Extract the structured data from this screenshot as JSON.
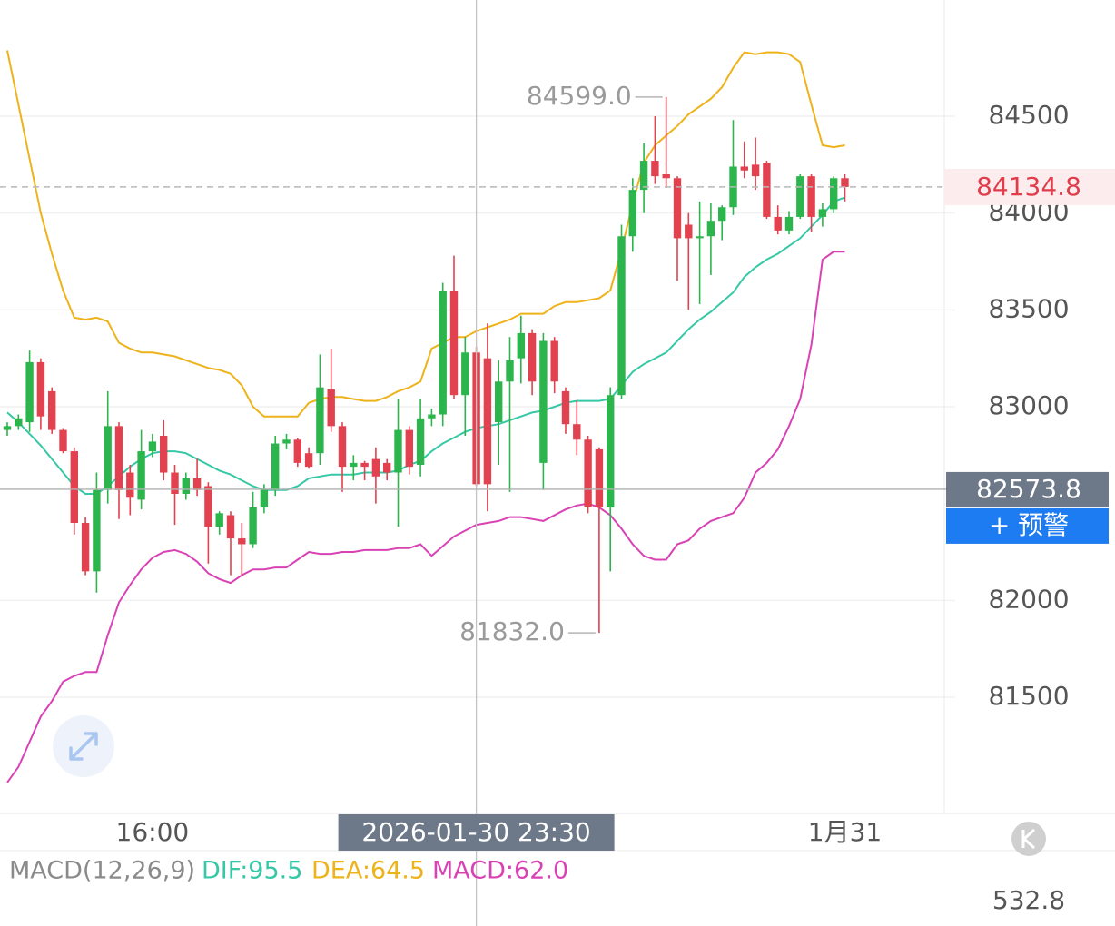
{
  "chart_data": {
    "type": "candlestick",
    "categories": [
      null,
      null,
      null,
      null,
      null,
      null,
      null,
      null,
      null,
      null,
      null,
      null,
      null,
      "16:00",
      null,
      null,
      null,
      null,
      null,
      null,
      null,
      null,
      null,
      null,
      null,
      null,
      null,
      null,
      null,
      null,
      null,
      null,
      null,
      null,
      null,
      null,
      null,
      null,
      null,
      null,
      null,
      null,
      "2026-01-30 23:30",
      null,
      null,
      null,
      null,
      null,
      null,
      null,
      null,
      null,
      null,
      null,
      null,
      null,
      null,
      null,
      null,
      null,
      null,
      null,
      null,
      null,
      null,
      null,
      null,
      null,
      null,
      null,
      null,
      null,
      null,
      null,
      null,
      "1月31"
    ],
    "open": [
      82880,
      82900,
      82920,
      83230,
      83080,
      82880,
      82770,
      82400,
      82150,
      82570,
      82900,
      82660,
      82520,
      82770,
      82850,
      82660,
      82550,
      82630,
      82590,
      82380,
      82440,
      82320,
      82290,
      82480,
      82570,
      82810,
      82830,
      82760,
      82760,
      83090,
      82900,
      82690,
      82710,
      82730,
      82710,
      82660,
      82880,
      82700,
      82940,
      82960,
      83600,
      83060,
      83280,
      83250,
      82920,
      83130,
      83250,
      83380,
      82710,
      83340,
      83080,
      82910,
      82830,
      82780,
      82480,
      83060,
      83880,
      84120,
      84270,
      84200,
      84180,
      83940,
      83870,
      83880,
      83960,
      84030,
      84240,
      84250,
      84260,
      83980,
      83910,
      83980,
      84190,
      83980,
      84020,
      84180
    ],
    "high": [
      82920,
      82960,
      83290,
      83250,
      83100,
      82890,
      82790,
      82430,
      82660,
      83080,
      82920,
      82700,
      82880,
      82860,
      82930,
      82700,
      82660,
      82730,
      82610,
      82460,
      82460,
      82400,
      82560,
      82600,
      82850,
      82860,
      82840,
      82790,
      83270,
      83300,
      82920,
      82750,
      82720,
      82790,
      82730,
      83040,
      82900,
      83040,
      82990,
      83640,
      83780,
      83360,
      83310,
      83430,
      83240,
      83360,
      83470,
      83400,
      83380,
      83360,
      83100,
      83030,
      82850,
      82790,
      83100,
      83940,
      84180,
      84360,
      84500,
      84599,
      84190,
      84000,
      84060,
      84050,
      84040,
      84480,
      84370,
      84390,
      84270,
      84040,
      84010,
      84200,
      84200,
      84050,
      84190,
      84200
    ],
    "low": [
      82850,
      82880,
      82870,
      82880,
      82860,
      82760,
      82340,
      82130,
      82040,
      82500,
      82420,
      82440,
      82470,
      82740,
      82620,
      82390,
      82520,
      82540,
      82190,
      82340,
      82130,
      82130,
      82270,
      82450,
      82540,
      82780,
      82690,
      82680,
      82700,
      82870,
      82560,
      82620,
      82620,
      82500,
      82620,
      82380,
      82650,
      82640,
      82900,
      82900,
      83040,
      82850,
      82590,
      82460,
      82700,
      82560,
      83120,
      83060,
      82570,
      83070,
      82860,
      82750,
      82450,
      81832,
      82150,
      83040,
      83800,
      84000,
      84150,
      84130,
      83650,
      83500,
      83530,
      83680,
      83860,
      83990,
      84180,
      84120,
      83970,
      83890,
      83890,
      83970,
      83900,
      83930,
      84000,
      84060
    ],
    "close": [
      82900,
      82940,
      83230,
      82950,
      82880,
      82770,
      82400,
      82150,
      82570,
      82900,
      82570,
      82530,
      82770,
      82820,
      82660,
      82550,
      82630,
      82570,
      82380,
      82450,
      82320,
      82290,
      82480,
      82570,
      82810,
      82830,
      82710,
      82690,
      83100,
      82900,
      82690,
      82710,
      82690,
      82640,
      82660,
      82880,
      82690,
      82940,
      82960,
      83600,
      83060,
      83280,
      82600,
      82600,
      83130,
      83240,
      83380,
      83130,
      83340,
      83130,
      82910,
      82830,
      82480,
      82480,
      83060,
      83880,
      84120,
      84270,
      84190,
      84180,
      83870,
      83870,
      83880,
      83960,
      84030,
      84240,
      84220,
      84190,
      83980,
      83910,
      83980,
      84190,
      83980,
      84020,
      84180,
      84134.8
    ],
    "up_color": "#2db54d",
    "down_color": "#e2424f",
    "bands": [
      {
        "color": "#eeb21a",
        "values": [
          84840,
          84560,
          84280,
          84000,
          83790,
          83600,
          83460,
          83450,
          83460,
          83440,
          83330,
          83300,
          83280,
          83280,
          83270,
          83260,
          83240,
          83220,
          83200,
          83190,
          83170,
          83110,
          83000,
          82950,
          82950,
          82950,
          82950,
          83020,
          83040,
          83050,
          83050,
          83040,
          83030,
          83030,
          83050,
          83080,
          83100,
          83130,
          83300,
          83330,
          83360,
          83360,
          83390,
          83410,
          83430,
          83450,
          83480,
          83480,
          83480,
          83520,
          83540,
          83540,
          83550,
          83560,
          83600,
          83810,
          84050,
          84260,
          84350,
          84400,
          84450,
          84510,
          84550,
          84590,
          84650,
          84750,
          84830,
          84820,
          84830,
          84830,
          84820,
          84780,
          84560,
          84350,
          84340,
          84350
        ]
      },
      {
        "color": "#36c8a6",
        "values": [
          82970,
          82920,
          82860,
          82800,
          82730,
          82660,
          82590,
          82550,
          82550,
          82590,
          82640,
          82690,
          82730,
          82760,
          82770,
          82770,
          82760,
          82730,
          82700,
          82670,
          82650,
          82620,
          82590,
          82570,
          82570,
          82570,
          82590,
          82630,
          82640,
          82650,
          82650,
          82650,
          82660,
          82660,
          82660,
          82670,
          82700,
          82720,
          82770,
          82810,
          82840,
          82870,
          82890,
          82900,
          82910,
          82930,
          82950,
          82970,
          82980,
          83000,
          83020,
          83030,
          83030,
          83030,
          83040,
          83110,
          83180,
          83220,
          83250,
          83280,
          83340,
          83400,
          83450,
          83490,
          83540,
          83590,
          83670,
          83720,
          83760,
          83790,
          83830,
          83870,
          83930,
          83990,
          84060,
          84080
        ]
      },
      {
        "color": "#d842b4",
        "values": [
          81060,
          81140,
          81270,
          81400,
          81480,
          81580,
          81610,
          81630,
          81630,
          81820,
          81990,
          82080,
          82160,
          82220,
          82250,
          82260,
          82240,
          82200,
          82140,
          82110,
          82090,
          82130,
          82160,
          82160,
          82170,
          82170,
          82210,
          82250,
          82240,
          82240,
          82250,
          82250,
          82260,
          82260,
          82260,
          82270,
          82270,
          82290,
          82230,
          82280,
          82330,
          82360,
          82390,
          82400,
          82410,
          82430,
          82430,
          82420,
          82410,
          82440,
          82470,
          82490,
          82500,
          82480,
          82440,
          82370,
          82290,
          82230,
          82210,
          82210,
          82290,
          82310,
          82370,
          82410,
          82430,
          82450,
          82530,
          82660,
          82710,
          82780,
          82900,
          83040,
          83320,
          83760,
          83800,
          83800
        ]
      }
    ],
    "ylim": [
      80900,
      85100
    ],
    "yticks": [
      81500,
      82000,
      83000,
      83500,
      84000,
      84500
    ],
    "grid": true,
    "high_label": {
      "value": 84599,
      "label": "84599.0"
    },
    "low_label": {
      "value": 81832,
      "label": "81832.0"
    },
    "last_price": 84134.8,
    "crosshair": {
      "category_index": 42,
      "price": 82573.8
    },
    "alert_button": "+ 预警",
    "indicator": {
      "title": "MACD(12,26,9)",
      "dif": "DIF:95.5",
      "dea": "DEA:64.5",
      "macd": "MACD:62.0",
      "axis_value": 532.8
    }
  }
}
